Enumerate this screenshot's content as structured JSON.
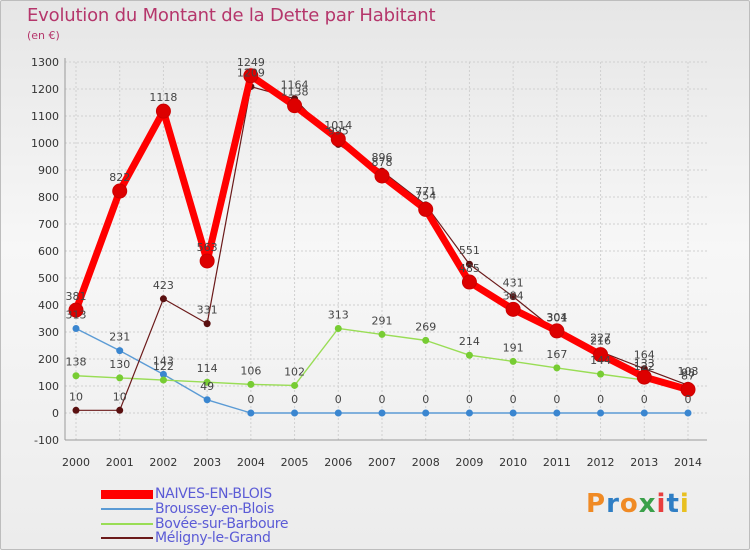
{
  "title": "Evolution du Montant de la Dette par Habitant",
  "subtitle": "(en €)",
  "logo_text": "Proxiti",
  "logo_colors": [
    "#f08a24",
    "#2f7ec4",
    "#f08a24",
    "#3aa04a",
    "#e83e3e",
    "#2f7ec4",
    "#e8c020"
  ],
  "chart_data": {
    "type": "line",
    "title": "Evolution du Montant de la Dette par Habitant",
    "ylabel": "(en €)",
    "xlabel": "",
    "ylim": [
      -100,
      1300
    ],
    "ytick_step": 100,
    "grid": true,
    "legend_position": "bottom-left",
    "categories": [
      "2000",
      "2001",
      "2002",
      "2003",
      "2004",
      "2005",
      "2006",
      "2007",
      "2008",
      "2009",
      "2010",
      "2011",
      "2012",
      "2013",
      "2014"
    ],
    "series": [
      {
        "name": "NAIVES-EN-BLOIS",
        "color": "#ff0000",
        "marker_color": "#dd0000",
        "values": [
          381,
          822,
          1118,
          563,
          1249,
          1138,
          1014,
          878,
          754,
          485,
          384,
          304,
          216,
          133,
          87
        ],
        "labels": [
          "381",
          "822",
          "1118",
          "563",
          "1249",
          "1138",
          "1014",
          "878",
          "754",
          "485",
          "384",
          "304",
          "216",
          "133",
          "87"
        ]
      },
      {
        "name": "Broussey-en-Blois",
        "color": "#5b9bd5",
        "marker_color": "#3a86d0",
        "values": [
          313,
          231,
          143,
          49,
          0,
          0,
          0,
          0,
          0,
          0,
          0,
          0,
          0,
          0,
          0
        ],
        "labels": [
          "313",
          "231",
          "143",
          "49",
          "0",
          "0",
          "0",
          "0",
          "0",
          "0",
          "0",
          "0",
          "0",
          "0",
          "0"
        ]
      },
      {
        "name": "Bovée-sur-Barboure",
        "color": "#99dd55",
        "marker_color": "#77cc33",
        "values": [
          138,
          130,
          122,
          114,
          106,
          102,
          313,
          291,
          269,
          214,
          191,
          167,
          144,
          122,
          98
        ],
        "labels": [
          "138",
          "130",
          "122",
          "114",
          "106",
          "102",
          "313",
          "291",
          "269",
          "214",
          "191",
          "167",
          "144",
          "122",
          "98"
        ]
      },
      {
        "name": "Méligny-le-Grand",
        "color": "#6b1a1a",
        "marker_color": "#5a1010",
        "values": [
          10,
          10,
          423,
          331,
          1209,
          1164,
          995,
          896,
          771,
          551,
          431,
          301,
          227,
          164,
          103
        ],
        "labels": [
          "10",
          "10",
          "423",
          "331",
          "1209",
          "1164",
          "995",
          "896",
          "771",
          "551",
          "431",
          "301",
          "227",
          "164",
          "103"
        ]
      }
    ]
  }
}
